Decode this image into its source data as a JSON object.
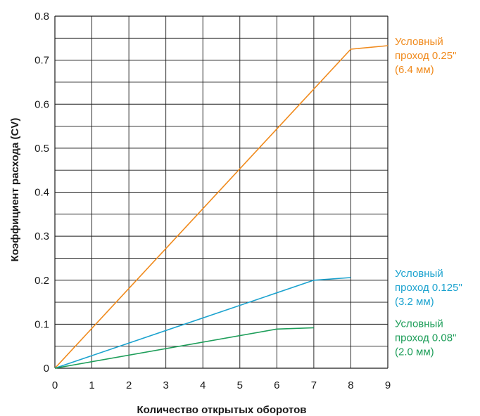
{
  "chart_data": {
    "type": "line",
    "xlabel": "Количество открытых оборотов",
    "ylabel": "Коэффициент расхода (CV)",
    "xlim": [
      0,
      9
    ],
    "ylim": [
      0,
      0.8
    ],
    "x_ticks": [
      "0",
      "1",
      "2",
      "3",
      "4",
      "5",
      "6",
      "7",
      "8",
      "9"
    ],
    "y_ticks": [
      "0",
      "0.1",
      "0.2",
      "0.3",
      "0.4",
      "0.5",
      "0.6",
      "0.7",
      "0.8"
    ],
    "grid": true,
    "legend": "right-inline",
    "series": [
      {
        "label_lines": [
          "Условный",
          "проход 0.25\"",
          "(6.4 мм)"
        ],
        "color": "#f08a1c",
        "x": [
          0,
          8,
          9
        ],
        "y": [
          0,
          0.725,
          0.733
        ]
      },
      {
        "label_lines": [
          "Условный",
          "проход 0.125\"",
          "(3.2 мм)"
        ],
        "color": "#1ca3cf",
        "x": [
          0,
          7,
          8
        ],
        "y": [
          0,
          0.2,
          0.206
        ]
      },
      {
        "label_lines": [
          "Условный",
          "проход 0.08\"",
          "(2.0 мм)"
        ],
        "color": "#1e9e5a",
        "x": [
          0,
          6,
          7
        ],
        "y": [
          0,
          0.089,
          0.092
        ]
      }
    ]
  }
}
